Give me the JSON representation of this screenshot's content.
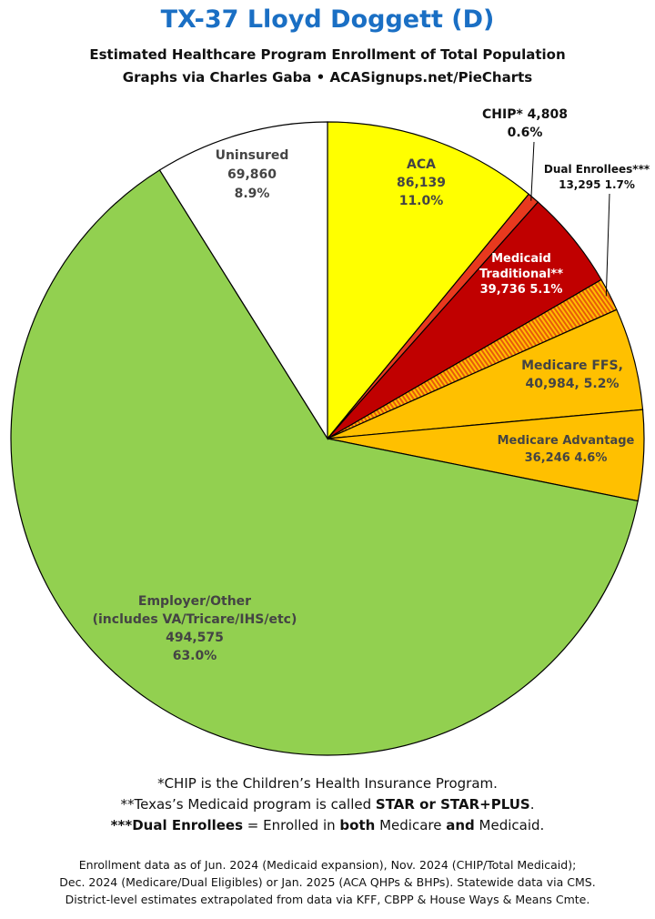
{
  "header": {
    "title": "TX-37 Lloyd Doggett (D)",
    "subtitle_line1": "Estimated Healthcare Program Enrollment of Total Population",
    "subtitle_line2": "Graphs via Charles Gaba  •  ACASignups.net/PieCharts"
  },
  "chart_data": {
    "type": "pie",
    "start_angle_deg": 0,
    "direction": "clockwise",
    "slices": [
      {
        "name": "ACA",
        "value": 86139,
        "percent": 11.0,
        "color": "#ffff00",
        "label_lines": [
          "ACA",
          "86,139",
          "11.0%"
        ],
        "label_color": "#444444"
      },
      {
        "name": "CHIP*",
        "value": 4808,
        "percent": 0.6,
        "color": "#e8391e",
        "label_lines": [
          "CHIP* 4,808",
          "0.6%"
        ],
        "label_color": "#111111"
      },
      {
        "name": "Medicaid Traditional**",
        "value": 39736,
        "percent": 5.1,
        "color": "#c00000",
        "label_lines": [
          "Medicaid",
          "Traditional**",
          "39,736 5.1%"
        ],
        "label_color": "#ffffff"
      },
      {
        "name": "Dual Enrollees***",
        "value": 13295,
        "percent": 1.7,
        "color": "#e8590c",
        "hatch": "#ffc000",
        "label_lines": [
          "Dual Enrollees***",
          "13,295 1.7%"
        ],
        "label_color": "#111111"
      },
      {
        "name": "Medicare FFS",
        "value": 40984,
        "percent": 5.2,
        "color": "#ffc000",
        "label_lines": [
          "Medicare FFS,",
          "40,984, 5.2%"
        ],
        "label_color": "#444444"
      },
      {
        "name": "Medicare Advantage",
        "value": 36246,
        "percent": 4.6,
        "color": "#ffc000",
        "label_lines": [
          "Medicare Advantage",
          "36,246 4.6%"
        ],
        "label_color": "#444444"
      },
      {
        "name": "Employer/Other",
        "value": 494575,
        "percent": 63.0,
        "color": "#92d050",
        "label_lines": [
          "Employer/Other",
          "(includes VA/Tricare/IHS/etc)",
          "494,575",
          "63.0%"
        ],
        "label_color": "#444444"
      },
      {
        "name": "Uninsured",
        "value": 69860,
        "percent": 8.9,
        "color": "#ffffff",
        "label_lines": [
          "Uninsured",
          "69,860",
          "8.9%"
        ],
        "label_color": "#444444"
      }
    ]
  },
  "footnotes": {
    "chip": "*CHIP is the Children’s Health Insurance Program.",
    "medicaid_pre": "**Texas’s Medicaid program is called ",
    "medicaid_bold": "STAR or STAR+PLUS",
    "medicaid_post": ".",
    "dual_bold": "***Dual Enrollees",
    "dual_mid1": " = Enrolled in ",
    "dual_both": "both",
    "dual_mid2": " Medicare ",
    "dual_and": "and",
    "dual_end": " Medicaid."
  },
  "source": {
    "line1": "Enrollment data as of Jun. 2024 (Medicaid expansion), Nov. 2024 (CHIP/Total Medicaid);",
    "line2": "Dec. 2024 (Medicare/Dual Eligibles) or Jan. 2025 (ACA QHPs & BHPs). Statewide data via CMS.",
    "line3": "District-level estimates extrapolated from data via KFF, CBPP & House Ways & Means Cmte."
  }
}
